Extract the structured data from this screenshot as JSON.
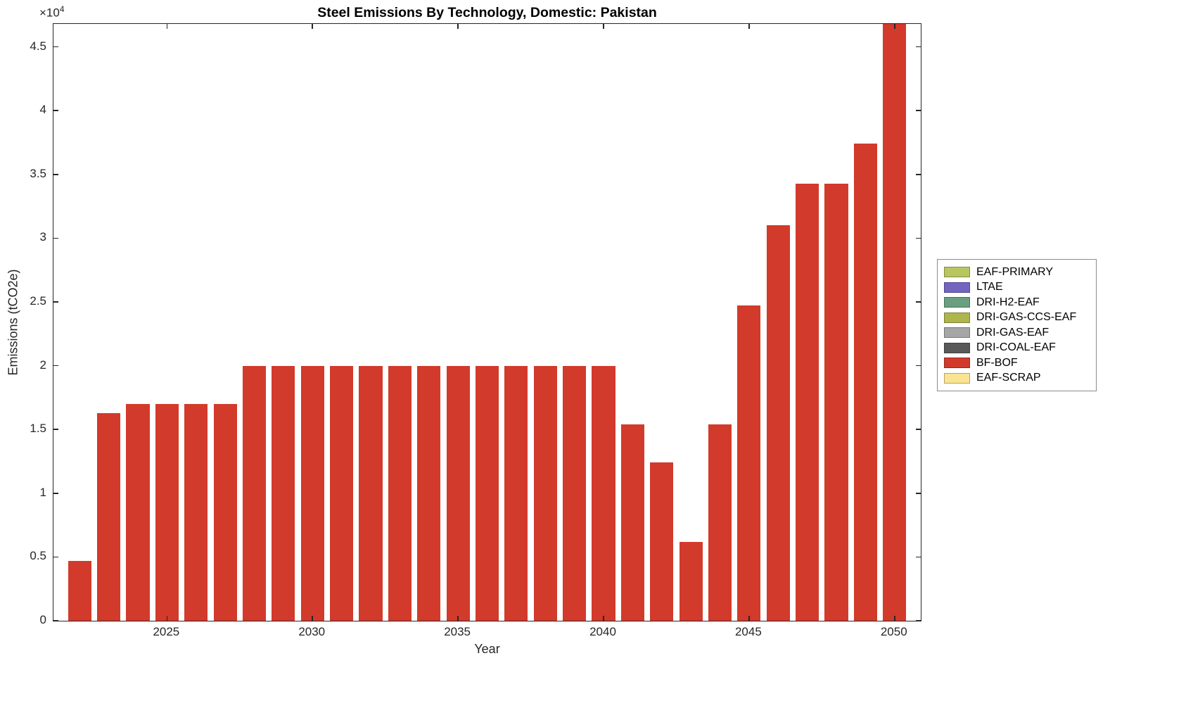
{
  "chart_data": {
    "type": "bar",
    "title": "Steel Emissions By Technology, Domestic: Pakistan",
    "xlabel": "Year",
    "ylabel": "Emissions (tCO2e)",
    "y_multiplier_base": "×10",
    "y_multiplier_exp": "4",
    "x": [
      2022,
      2023,
      2024,
      2025,
      2026,
      2027,
      2028,
      2029,
      2030,
      2031,
      2032,
      2033,
      2034,
      2035,
      2036,
      2037,
      2038,
      2039,
      2040,
      2041,
      2042,
      2043,
      2044,
      2045,
      2046,
      2047,
      2048,
      2049,
      2050
    ],
    "series": [
      {
        "name": "BF-BOF",
        "color": "#d23a2b",
        "values": [
          4700,
          16300,
          17000,
          17000,
          17000,
          17000,
          20000,
          20000,
          20000,
          20000,
          20000,
          20000,
          20000,
          20000,
          20000,
          20000,
          20000,
          20000,
          20000,
          15400,
          12400,
          6200,
          15400,
          24700,
          31000,
          34300,
          34300,
          37400,
          46800
        ]
      }
    ],
    "xlim": [
      2021.1,
      2050.9
    ],
    "ylim": [
      0,
      46800
    ],
    "bar_width_fraction": 0.8,
    "grid": false,
    "x_ticks": [
      2025,
      2030,
      2035,
      2040,
      2045,
      2050
    ],
    "x_tick_labels": [
      "2025",
      "2030",
      "2035",
      "2040",
      "2045",
      "2050"
    ],
    "y_ticks": [
      0,
      5000,
      10000,
      15000,
      20000,
      25000,
      30000,
      35000,
      40000,
      45000
    ],
    "y_tick_labels": [
      "0",
      "0.5",
      "1",
      "1.5",
      "2",
      "2.5",
      "3",
      "3.5",
      "4",
      "4.5"
    ],
    "legend": {
      "position": "right-outside",
      "entries": [
        {
          "label": "EAF-PRIMARY",
          "color": "#b9c55f"
        },
        {
          "label": "LTAE",
          "color": "#7165c1"
        },
        {
          "label": "DRI-H2-EAF",
          "color": "#6a9e80"
        },
        {
          "label": "DRI-GAS-CCS-EAF",
          "color": "#adb54c"
        },
        {
          "label": "DRI-GAS-EAF",
          "color": "#a6a6a6"
        },
        {
          "label": "DRI-COAL-EAF",
          "color": "#595959"
        },
        {
          "label": "BF-BOF",
          "color": "#d23a2b"
        },
        {
          "label": "EAF-SCRAP",
          "color": "#fbe491"
        }
      ]
    }
  }
}
